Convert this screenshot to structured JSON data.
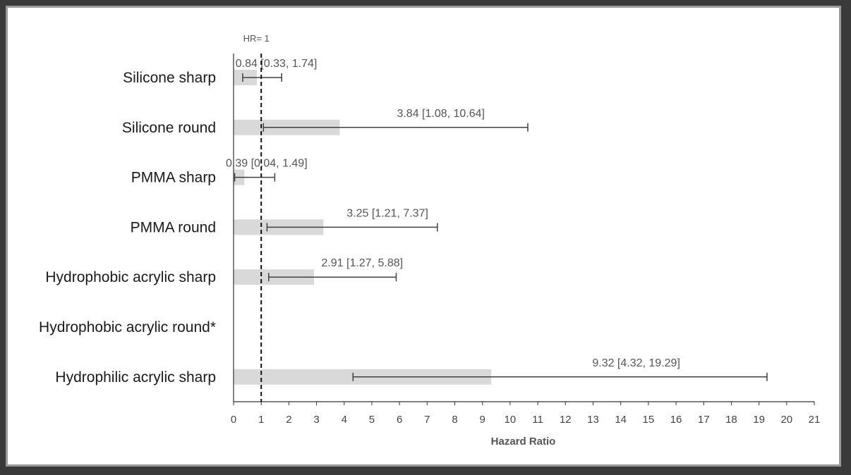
{
  "chart_data": {
    "type": "bar",
    "orientation": "horizontal",
    "categories": [
      "Silicone sharp",
      "Silicone round",
      "PMMA sharp",
      "PMMA round",
      "Hydrophobic acrylic sharp",
      "Hydrophobic acrylic round*",
      "Hydrophilic acrylic sharp"
    ],
    "values": [
      0.84,
      3.84,
      0.39,
      3.25,
      2.91,
      null,
      9.32
    ],
    "ci_lower": [
      0.33,
      1.08,
      0.04,
      1.21,
      1.27,
      null,
      4.32
    ],
    "ci_upper": [
      1.74,
      10.64,
      1.49,
      7.37,
      5.88,
      null,
      19.29
    ],
    "data_labels": [
      "0.84 [0.33, 1.74]",
      "3.84 [1.08, 10.64]",
      "0.39 [0.04, 1.49]",
      "3.25 [1.21, 7.37]",
      "2.91 [1.27, 5.88]",
      "",
      "9.32 [4.32, 19.29]"
    ],
    "xlabel": "Hazard Ratio",
    "xlim": [
      0,
      21
    ],
    "xticks": [
      0,
      1,
      2,
      3,
      4,
      5,
      6,
      7,
      8,
      9,
      10,
      11,
      12,
      13,
      14,
      15,
      16,
      17,
      18,
      19,
      20,
      21
    ],
    "reference_line": {
      "value": 1,
      "label": "HR= 1"
    },
    "bar_color": "#d9d9d9",
    "errorbar_color": "#404040",
    "grid": false
  }
}
